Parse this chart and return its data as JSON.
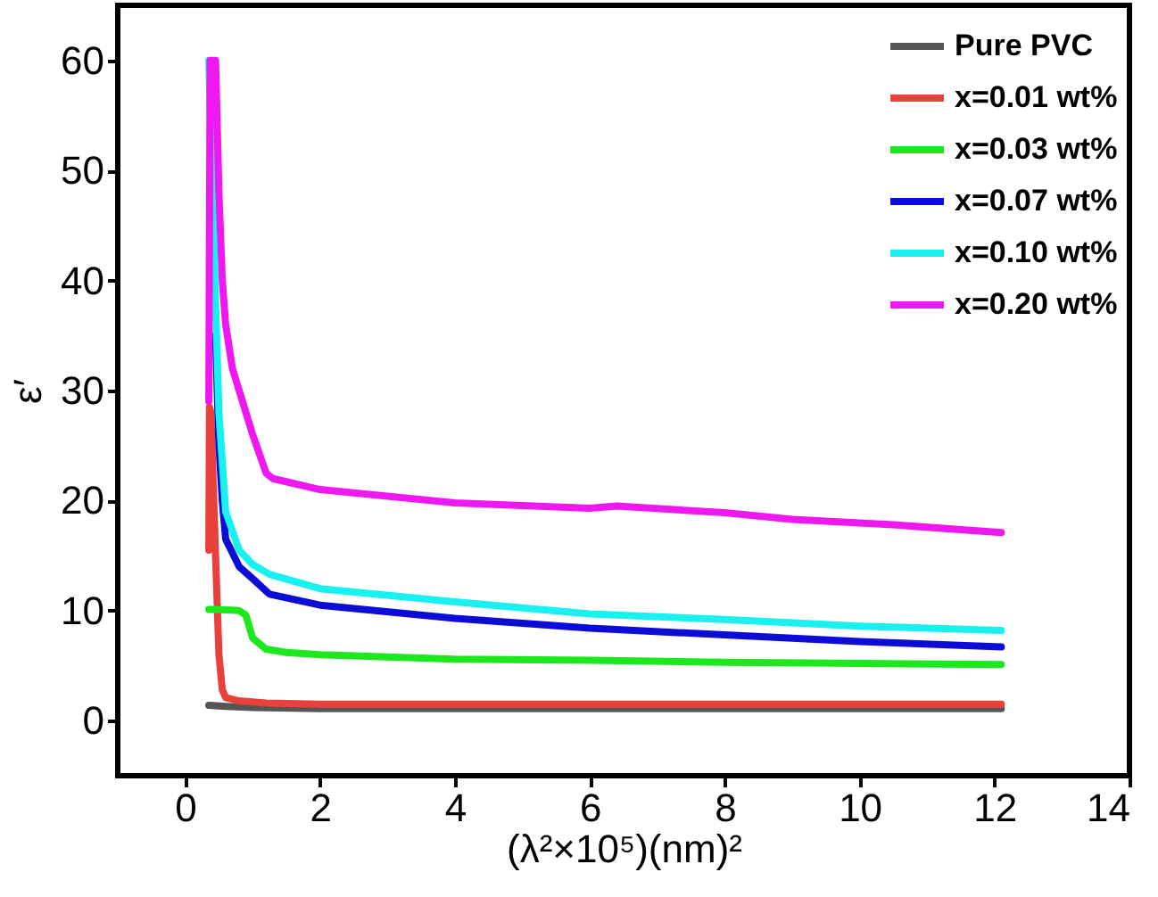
{
  "chart_data": {
    "type": "line",
    "xlabel": "(λ²×10⁵)(nm)²",
    "ylabel": "ε′",
    "xlim": [
      -1,
      14
    ],
    "ylim": [
      -5,
      65
    ],
    "xticks": [
      0,
      2,
      4,
      6,
      8,
      10,
      12,
      14
    ],
    "yticks": [
      0,
      10,
      20,
      30,
      40,
      50,
      60
    ],
    "legend": "top right",
    "grid": false,
    "line_style": "solid",
    "marker": "none",
    "series": [
      {
        "name": "Pure PVC",
        "color": "#555555",
        "x": [
          0.35,
          0.6,
          1.0,
          2,
          4,
          6,
          8,
          10,
          12.1
        ],
        "values": [
          1.4,
          1.3,
          1.2,
          1.1,
          1.1,
          1.1,
          1.1,
          1.1,
          1.1
        ]
      },
      {
        "name": "x=0.01 wt%",
        "color": "#e8413c",
        "x": [
          0.35,
          0.36,
          0.38,
          0.45,
          0.5,
          0.55,
          0.6,
          0.8,
          1.2,
          2,
          4,
          6,
          8,
          10,
          12.1
        ],
        "values": [
          15.5,
          28.5,
          28,
          15,
          6,
          2.8,
          2.1,
          1.8,
          1.6,
          1.5,
          1.5,
          1.5,
          1.5,
          1.5,
          1.5
        ]
      },
      {
        "name": "x=0.03 wt%",
        "color": "#1de81d",
        "x": [
          0.35,
          0.5,
          0.8,
          0.9,
          1.0,
          1.2,
          1.5,
          2,
          4,
          6,
          8,
          10,
          12.1
        ],
        "values": [
          10.1,
          10.1,
          10.0,
          9.6,
          7.5,
          6.5,
          6.2,
          6.0,
          5.6,
          5.5,
          5.3,
          5.2,
          5.1
        ]
      },
      {
        "name": "x=0.07 wt%",
        "color": "#0c0cd6",
        "x": [
          0.45,
          0.5,
          0.55,
          0.6,
          0.8,
          1.0,
          1.25,
          2,
          4,
          6,
          8,
          10,
          12.1
        ],
        "values": [
          35,
          25,
          20,
          16.5,
          14,
          12.9,
          11.5,
          10.5,
          9.3,
          8.4,
          7.8,
          7.2,
          6.7
        ]
      },
      {
        "name": "x=0.10 wt%",
        "color": "#19f0f0",
        "x": [
          0.35,
          0.45,
          0.5,
          0.6,
          0.8,
          1.0,
          1.25,
          2,
          4,
          6,
          8,
          10,
          12.1
        ],
        "values": [
          60,
          38,
          28,
          19,
          15.5,
          14.2,
          13.3,
          12,
          10.8,
          9.7,
          9.2,
          8.6,
          8.2
        ]
      },
      {
        "name": "x=0.20 wt%",
        "color": "#f018f0",
        "x": [
          0.35,
          0.37,
          0.45,
          0.5,
          0.55,
          0.6,
          0.7,
          0.8,
          1.0,
          1.2,
          1.3,
          2,
          4,
          6,
          6.4,
          8,
          9,
          10.5,
          12.1
        ],
        "values": [
          29,
          60,
          60,
          48,
          40,
          36,
          32,
          30,
          26,
          22.5,
          22,
          21,
          19.8,
          19.3,
          19.5,
          18.9,
          18.3,
          17.8,
          17.1
        ]
      }
    ]
  }
}
